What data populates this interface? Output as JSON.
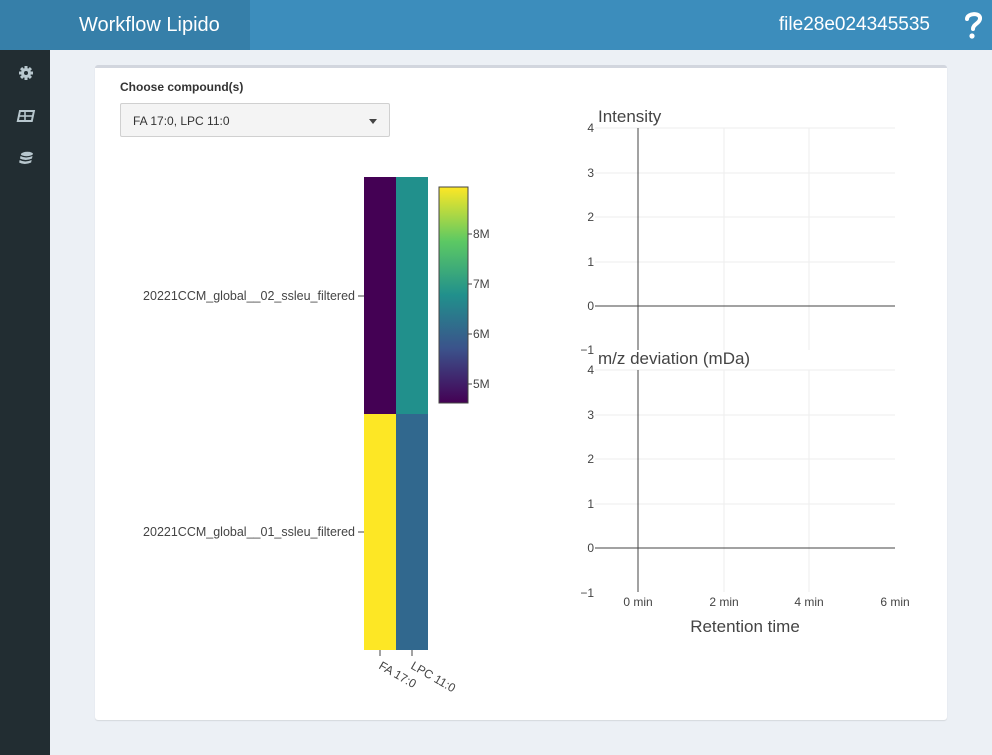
{
  "header": {
    "title": "Workflow Lipido",
    "filename": "file28e024345535"
  },
  "sidebar": {
    "icons": [
      "gear-icon",
      "table-icon",
      "database-icon"
    ]
  },
  "form": {
    "label": "Choose compound(s)",
    "selected": "FA 17:0, LPC 11:0"
  },
  "heatmap": {
    "rows": [
      "20221CCM_global__02_ssleu_filtered",
      "20221CCM_global__01_ssleu_filtered"
    ],
    "cols": [
      "FA 17:0",
      "LPC 11:0"
    ],
    "colorbar_ticks": [
      "8M",
      "7M",
      "6M",
      "5M"
    ],
    "colors": [
      [
        "#440154",
        "#21908c"
      ],
      [
        "#fde725",
        "#31688e"
      ]
    ]
  },
  "chart_data": [
    {
      "type": "line",
      "title": "Intensity",
      "xlabel": "",
      "ylabel": "",
      "xlim": [
        0,
        6
      ],
      "ylim": [
        -1,
        4
      ],
      "yticks": [
        "4",
        "3",
        "2",
        "1",
        "0",
        "−1"
      ],
      "series": []
    },
    {
      "type": "line",
      "title": "m/z deviation (mDa)",
      "xlabel": "Retention time",
      "ylabel": "",
      "xlim": [
        0,
        6
      ],
      "ylim": [
        -1,
        4
      ],
      "xticks": [
        "0 min",
        "2 min",
        "4 min",
        "6 min"
      ],
      "yticks": [
        "4",
        "3",
        "2",
        "1",
        "0",
        "−1"
      ],
      "series": []
    }
  ]
}
